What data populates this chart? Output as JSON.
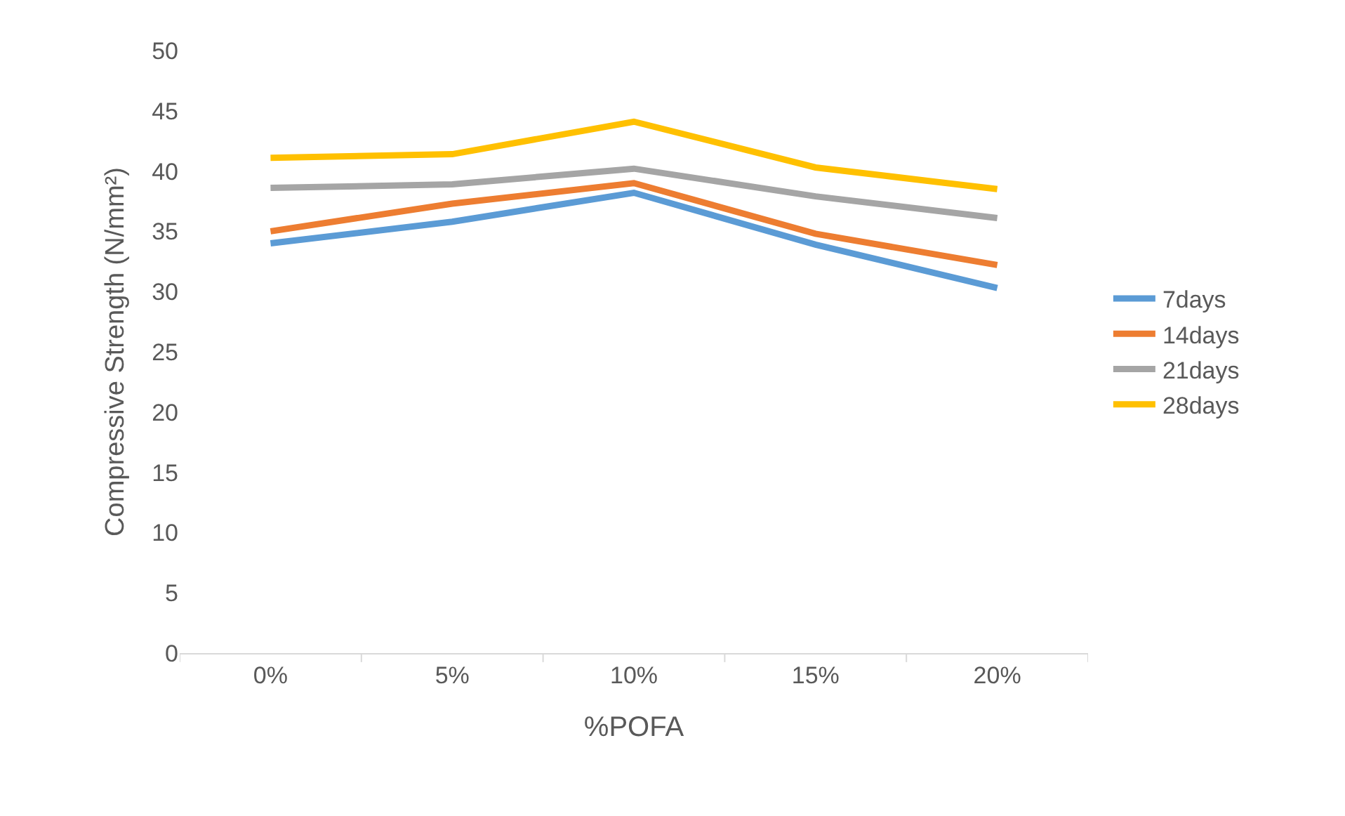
{
  "chart_data": {
    "type": "line",
    "xlabel": "%POFA",
    "ylabel": "Compressive Strength (N/mm²)",
    "categories": [
      "0%",
      "5%",
      "10%",
      "15%",
      "20%"
    ],
    "series": [
      {
        "name": "7days",
        "color": "#5b9bd5",
        "values": [
          34.0,
          35.8,
          38.2,
          33.9,
          30.3
        ]
      },
      {
        "name": "14days",
        "color": "#ed7d31",
        "values": [
          35.0,
          37.3,
          39.0,
          34.8,
          32.2
        ]
      },
      {
        "name": "21days",
        "color": "#a5a5a5",
        "values": [
          38.6,
          38.9,
          40.2,
          37.9,
          36.1
        ]
      },
      {
        "name": "28days",
        "color": "#ffc000",
        "values": [
          41.1,
          41.4,
          44.1,
          40.3,
          38.5
        ]
      }
    ],
    "ylim": [
      0,
      50
    ],
    "yticks": [
      0,
      5,
      10,
      15,
      20,
      25,
      30,
      35,
      40,
      45,
      50
    ],
    "grid": false,
    "legend": "right",
    "marker": "none",
    "line_style": "solid"
  }
}
